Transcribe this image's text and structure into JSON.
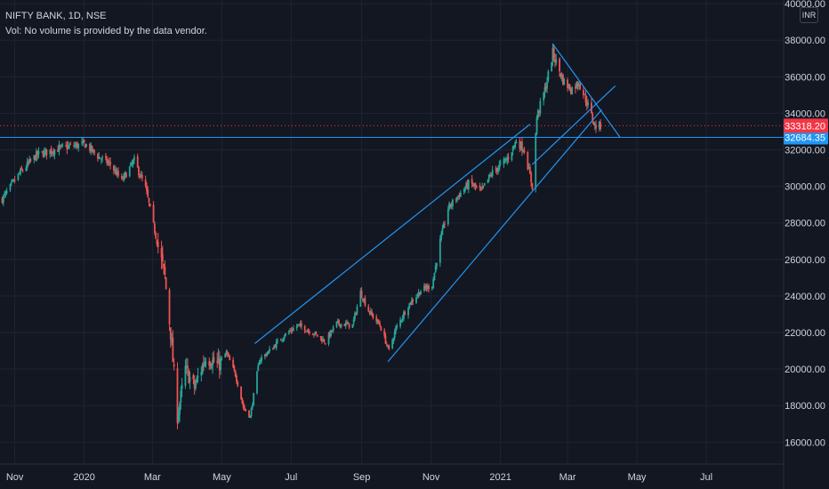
{
  "header": {
    "symbol_line": "NIFTY BANK, 1D, NSE",
    "volume_note": "Vol: No volume is provided by the data vendor."
  },
  "currency": "INR",
  "colors": {
    "background": "#131722",
    "grid": "#1f2433",
    "axis_text": "#d1d4dc",
    "axis_line": "#2a2e39",
    "up": "#26a69a",
    "down": "#ef5350",
    "trendline": "#2196f3",
    "last_price_label": "#f23645",
    "level_label": "#2196f3"
  },
  "chart_data": {
    "type": "candlestick",
    "y_ticks": [
      16000,
      18000,
      20000,
      22000,
      24000,
      26000,
      28000,
      30000,
      32000,
      34000,
      36000,
      38000,
      40000
    ],
    "y_tick_labels": [
      "16000.00",
      "18000.00",
      "20000.00",
      "22000.00",
      "24000.00",
      "26000.00",
      "28000.00",
      "30000.00",
      "32000.00",
      "34000.00",
      "36000.00",
      "38000.00",
      "40000.00"
    ],
    "ylim": [
      14800,
      40200
    ],
    "x_range": [
      "2019-10-19",
      "2021-09-07"
    ],
    "x_ticks": [
      {
        "date": "2019-11-01",
        "label": "Nov"
      },
      {
        "date": "2020-01-01",
        "label": "2020"
      },
      {
        "date": "2020-03-01",
        "label": "Mar"
      },
      {
        "date": "2020-05-01",
        "label": "May"
      },
      {
        "date": "2020-07-01",
        "label": "Jul"
      },
      {
        "date": "2020-09-01",
        "label": "Sep"
      },
      {
        "date": "2020-11-01",
        "label": "Nov"
      },
      {
        "date": "2021-01-01",
        "label": "2021"
      },
      {
        "date": "2021-03-01",
        "label": "Mar"
      },
      {
        "date": "2021-05-01",
        "label": "May"
      },
      {
        "date": "2021-07-01",
        "label": "Jul"
      }
    ],
    "close_path": [
      [
        "2019-10-21",
        29300
      ],
      [
        "2019-11-05",
        30700
      ],
      [
        "2019-11-20",
        31700
      ],
      [
        "2019-12-05",
        32000
      ],
      [
        "2019-12-20",
        32200
      ],
      [
        "2020-01-02",
        32300
      ],
      [
        "2020-01-14",
        31600
      ],
      [
        "2020-01-24",
        31200
      ],
      [
        "2020-02-03",
        30300
      ],
      [
        "2020-02-14",
        31400
      ],
      [
        "2020-02-24",
        29900
      ],
      [
        "2020-03-05",
        27000
      ],
      [
        "2020-03-12",
        25000
      ],
      [
        "2020-03-17",
        22000
      ],
      [
        "2020-03-23",
        17400
      ],
      [
        "2020-03-30",
        20000
      ],
      [
        "2020-04-07",
        19000
      ],
      [
        "2020-04-17",
        20700
      ],
      [
        "2020-04-28",
        20200
      ],
      [
        "2020-05-05",
        20900
      ],
      [
        "2020-05-13",
        19700
      ],
      [
        "2020-05-20",
        17900
      ],
      [
        "2020-05-26",
        17400
      ],
      [
        "2020-06-03",
        20500
      ],
      [
        "2020-06-12",
        21000
      ],
      [
        "2020-06-24",
        21800
      ],
      [
        "2020-07-07",
        22400
      ],
      [
        "2020-07-20",
        22000
      ],
      [
        "2020-07-31",
        21500
      ],
      [
        "2020-08-10",
        22500
      ],
      [
        "2020-08-24",
        22400
      ],
      [
        "2020-08-31",
        24200
      ],
      [
        "2020-09-07",
        23200
      ],
      [
        "2020-09-17",
        22400
      ],
      [
        "2020-09-25",
        21000
      ],
      [
        "2020-10-01",
        22200
      ],
      [
        "2020-10-12",
        23500
      ],
      [
        "2020-10-23",
        24300
      ],
      [
        "2020-11-02",
        24600
      ],
      [
        "2020-11-09",
        27000
      ],
      [
        "2020-11-16",
        28800
      ],
      [
        "2020-11-25",
        29500
      ],
      [
        "2020-12-05",
        30200
      ],
      [
        "2020-12-15",
        29700
      ],
      [
        "2020-12-24",
        30700
      ],
      [
        "2021-01-07",
        31500
      ],
      [
        "2021-01-15",
        32500
      ],
      [
        "2021-01-22",
        32000
      ],
      [
        "2021-01-29",
        30000
      ],
      [
        "2021-02-02",
        33800
      ],
      [
        "2021-02-10",
        35500
      ],
      [
        "2021-02-16",
        37300
      ],
      [
        "2021-02-25",
        35800
      ],
      [
        "2021-03-04",
        35300
      ],
      [
        "2021-03-11",
        35700
      ],
      [
        "2021-03-18",
        34600
      ],
      [
        "2021-03-25",
        33300
      ],
      [
        "2021-03-30",
        33318
      ]
    ],
    "trendlines": [
      {
        "start": [
          "2020-05-30",
          21400
        ],
        "end": [
          "2021-01-27",
          33400
        ]
      },
      {
        "start": [
          "2020-09-24",
          20400
        ],
        "end": [
          "2021-03-31",
          34200
        ]
      },
      {
        "start": [
          "2021-01-29",
          31200
        ],
        "end": [
          "2021-04-12",
          35500
        ]
      },
      {
        "start": [
          "2021-02-16",
          37800
        ],
        "end": [
          "2021-04-16",
          32700
        ]
      }
    ],
    "levels": [
      {
        "price": 32684.35,
        "label": "32684.35",
        "style": "solid",
        "color": "#2196f3"
      },
      {
        "price": 33318.2,
        "label": "33318.20",
        "style": "dotted",
        "color": "#f23645"
      }
    ]
  }
}
